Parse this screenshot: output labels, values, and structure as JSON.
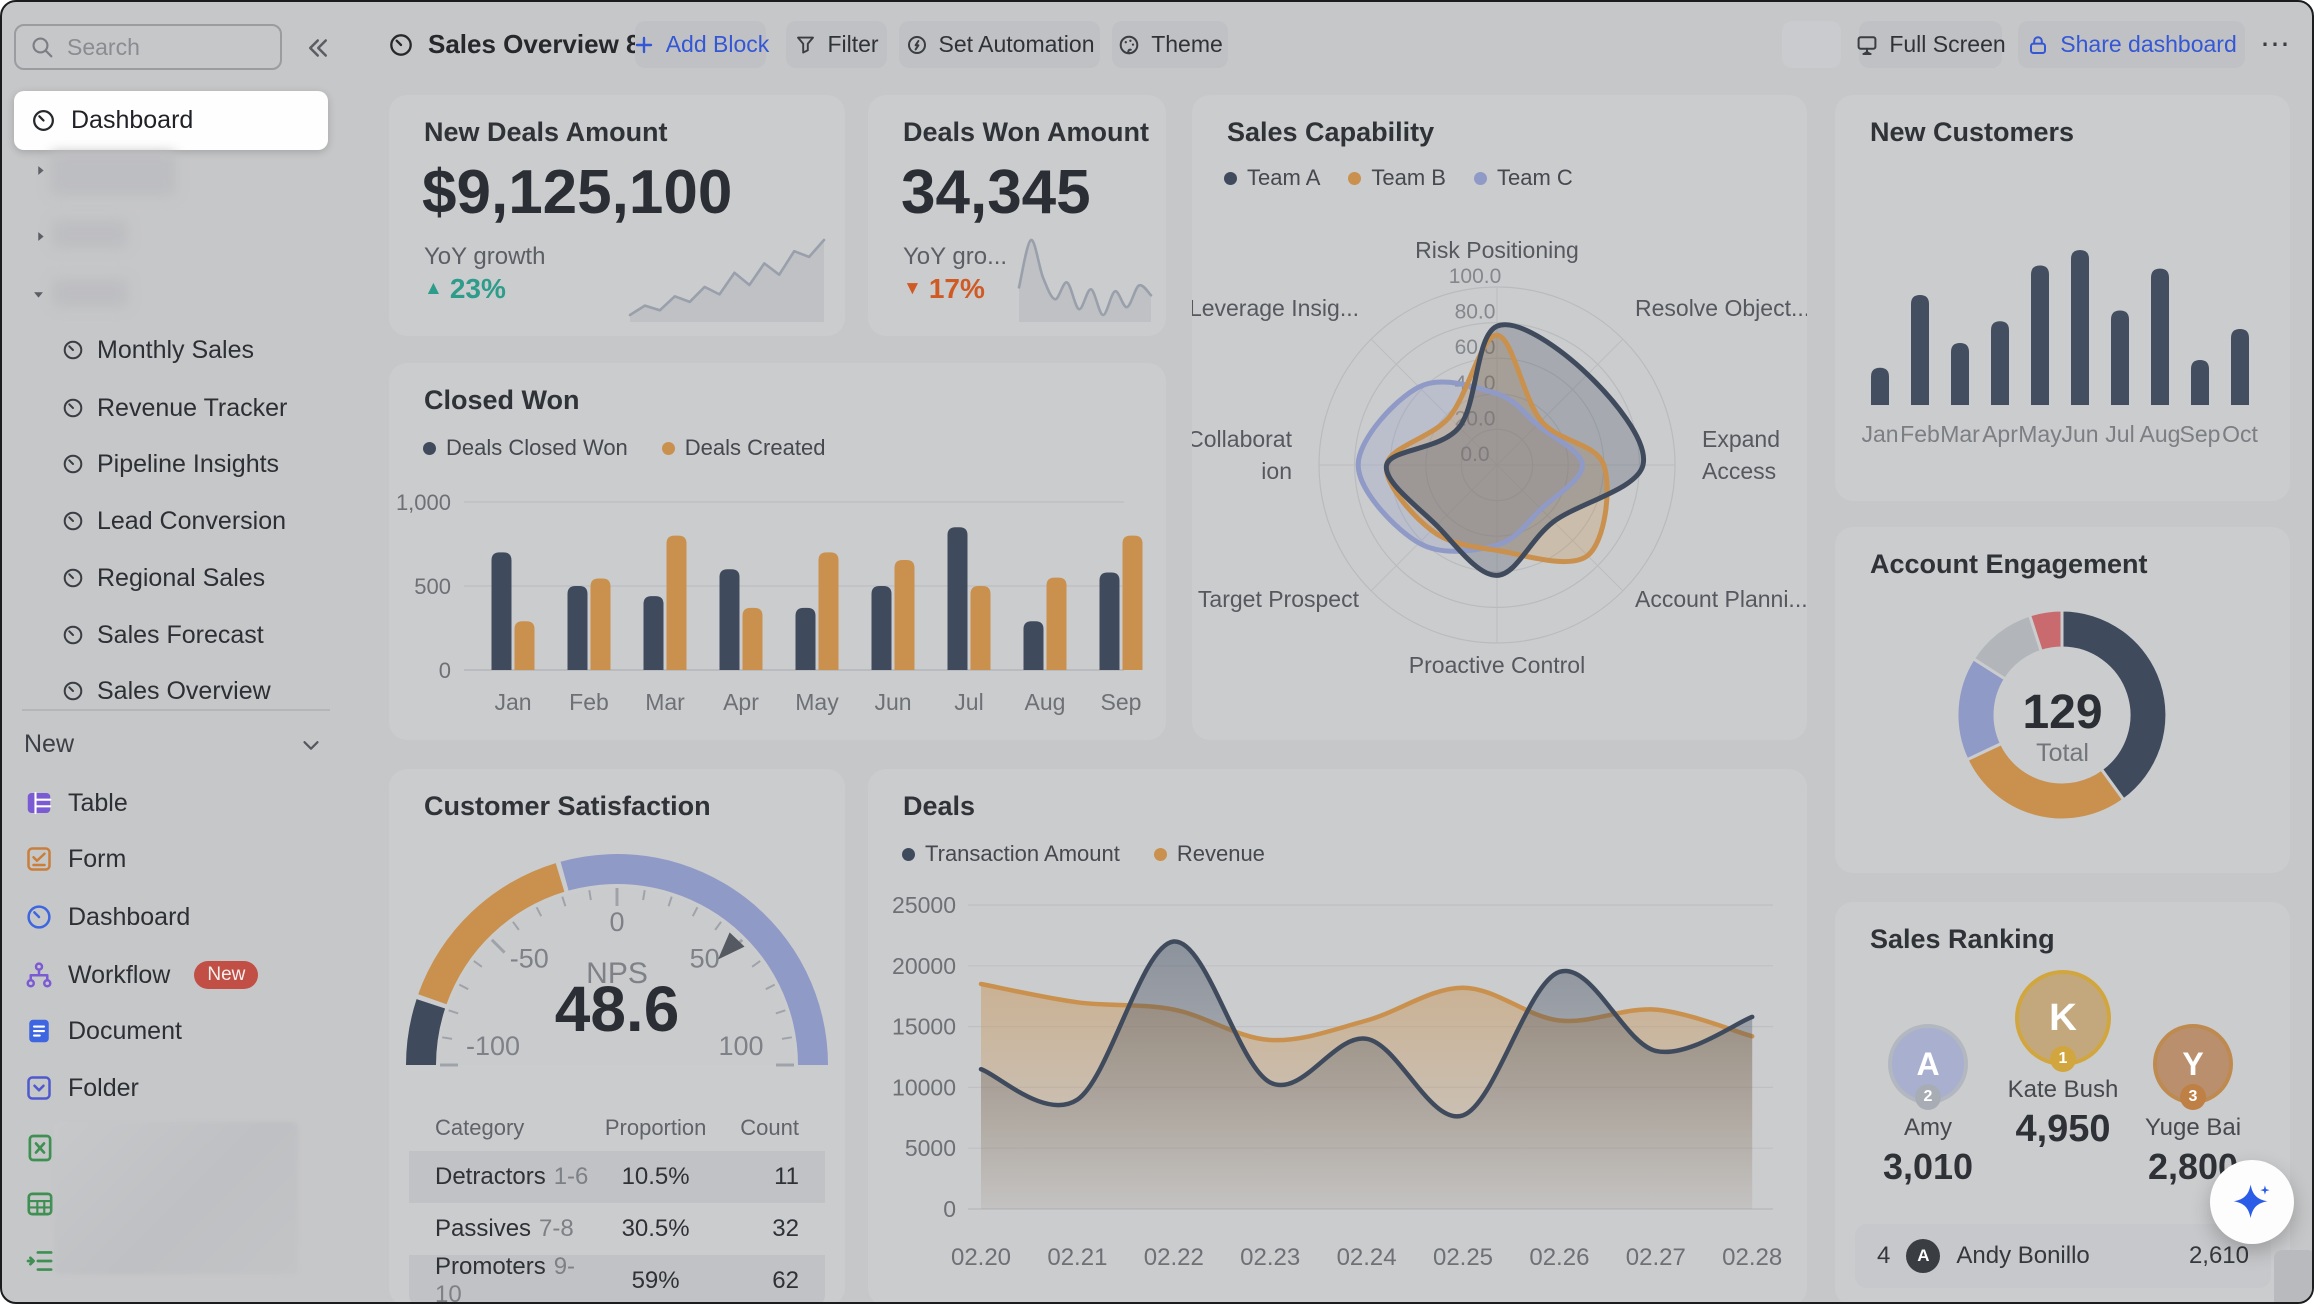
{
  "topbar": {
    "search": {
      "placeholder": "Search"
    },
    "title": "Sales Overview 8",
    "buttons": {
      "add_block": "Add Block",
      "filter": "Filter",
      "set_automation": "Set Automation",
      "theme": "Theme",
      "full_screen": "Full Screen",
      "share_dashboard": "Share dashboard",
      "more": "⋯"
    }
  },
  "sidebar": {
    "active": "Dashboard",
    "dashboards": [
      "Monthly Sales",
      "Revenue Tracker",
      "Pipeline Insights",
      "Lead Conversion",
      "Regional Sales",
      "Sales Forecast",
      "Sales Overview"
    ],
    "section_label": "New",
    "tools": [
      {
        "label": "Table",
        "icon": "table",
        "color": "#7b5bd4"
      },
      {
        "label": "Form",
        "icon": "form",
        "color": "#c97e3b"
      },
      {
        "label": "Dashboard",
        "icon": "clock",
        "color": "#3d66e0"
      },
      {
        "label": "Workflow",
        "icon": "workflow",
        "color": "#7b5bd4",
        "badge": "New"
      },
      {
        "label": "Document",
        "icon": "document",
        "color": "#3d66e0"
      },
      {
        "label": "Folder",
        "icon": "folder",
        "color": "#4f58cf"
      }
    ]
  },
  "cards": {
    "new_deals": {
      "title": "New Deals Amount",
      "value": "$9,125,100",
      "sub": "YoY growth",
      "delta": "23%"
    },
    "deals_won": {
      "title": "Deals Won Amount",
      "value": "34,345",
      "sub": "YoY gro...",
      "delta": "17%"
    },
    "closed_won": {
      "title": "Closed Won"
    },
    "capability": {
      "title": "Sales Capability"
    },
    "new_customers": {
      "title": "New Customers"
    },
    "engagement": {
      "title": "Account Engagement",
      "total_value": "129",
      "total_label": "Total"
    },
    "satisfaction": {
      "title": "Customer Satisfaction",
      "metric_label": "NPS",
      "metric_value": "48.6"
    },
    "deals": {
      "title": "Deals"
    },
    "ranking": {
      "title": "Sales Ranking"
    }
  },
  "colors": {
    "navy": "#3f4b5d",
    "orange": "#c9914d",
    "periwinkle": "#8f9ac7",
    "teal_up": "#2e9c8b",
    "red_down": "#cf5a24",
    "accent_blue": "#3457d6",
    "badge_red": "#c14f46"
  },
  "chart_data": [
    {
      "id": "new_deals_spark",
      "type": "line",
      "values": [
        2,
        3,
        2.5,
        4,
        3.4,
        5,
        4.2,
        6.5,
        5.2,
        7.5,
        6.3,
        8.8,
        8.2,
        10
      ]
    },
    {
      "id": "deals_won_spark",
      "type": "line",
      "values": [
        5,
        9.8,
        6,
        3.8,
        5.5,
        2.8,
        4.8,
        2.2,
        4.6,
        3,
        5.2,
        4.2
      ]
    },
    {
      "id": "closed_won",
      "type": "bar",
      "categories": [
        "Jan",
        "Feb",
        "Mar",
        "Apr",
        "May",
        "Jun",
        "Jul",
        "Aug",
        "Sep"
      ],
      "series": [
        {
          "name": "Deals Closed Won",
          "color": "#3f4b5d",
          "values": [
            700,
            500,
            440,
            600,
            370,
            500,
            850,
            290,
            580
          ]
        },
        {
          "name": "Deals Created",
          "color": "#c9914d",
          "values": [
            290,
            545,
            800,
            370,
            700,
            655,
            500,
            550,
            800
          ]
        }
      ],
      "ylim": [
        0,
        1000
      ],
      "yticks": [
        "0",
        "500",
        "1,000"
      ]
    },
    {
      "id": "capability",
      "type": "radar",
      "axes": [
        "Risk Positioning",
        "Resolve Object...",
        "Expand Access",
        "Account Planni...",
        "Proactive Control",
        "Target Prospect",
        "Collaboration",
        "Leverage Insig..."
      ],
      "axis_display": [
        "Risk Positioning",
        "Resolve Object...",
        "Expand\nAccess",
        "Account Planni...",
        "Proactive Control",
        "Target Prospect",
        "Collaborat\nion",
        "Leverage Insig..."
      ],
      "rmax": 100,
      "rticks": [
        "100.0",
        "80.0",
        "60.0",
        "40.0",
        "20.0",
        "0.0"
      ],
      "series": [
        {
          "name": "Team A",
          "color": "#3f4b5d",
          "values": [
            78,
            72,
            82,
            45,
            62,
            48,
            62,
            30
          ]
        },
        {
          "name": "Team B",
          "color": "#c9914d",
          "values": [
            73,
            35,
            60,
            72,
            48,
            52,
            62,
            38
          ]
        },
        {
          "name": "Team C",
          "color": "#8f9ac7",
          "values": [
            40,
            32,
            48,
            35,
            45,
            62,
            78,
            62
          ]
        }
      ]
    },
    {
      "id": "new_customers",
      "type": "bar",
      "color": "#434f60",
      "categories": [
        "Jan",
        "Feb",
        "Mar",
        "Apr",
        "May",
        "Jun",
        "Jul",
        "Aug",
        "Sep",
        "Oct"
      ],
      "values": [
        24,
        71,
        40,
        54,
        90,
        100,
        61,
        88,
        29,
        49
      ]
    },
    {
      "id": "engagement",
      "type": "pie",
      "segments": [
        {
          "value": 40,
          "color": "#3f4b5d"
        },
        {
          "value": 28,
          "color": "#c9914d"
        },
        {
          "value": 16,
          "color": "#8f9ac7"
        },
        {
          "value": 11,
          "color": "#b2b5b9"
        },
        {
          "value": 5,
          "color": "#c86a6e"
        }
      ],
      "center_value": "129",
      "center_label": "Total"
    },
    {
      "id": "satisfaction_gauge",
      "type": "gauge",
      "min": -100,
      "max": 100,
      "value": 48.6,
      "ticks": [
        -100,
        -50,
        0,
        50,
        100
      ],
      "zones": [
        {
          "from": -100,
          "to": -79,
          "color": "#3f4b5d"
        },
        {
          "from": -79,
          "to": -18,
          "color": "#c9914d"
        },
        {
          "from": -18,
          "to": 100,
          "color": "#8f9ac7"
        }
      ]
    },
    {
      "id": "nps_table",
      "type": "table",
      "columns": [
        "Category",
        "Proportion",
        "Count"
      ],
      "rows": [
        {
          "category": "Detractors",
          "range": "1-6",
          "proportion": "10.5%",
          "count": "11"
        },
        {
          "category": "Passives",
          "range": "7-8",
          "proportion": "30.5%",
          "count": "32"
        },
        {
          "category": "Promoters",
          "range": "9-10",
          "proportion": "59%",
          "count": "62"
        }
      ]
    },
    {
      "id": "deals_trend",
      "type": "area",
      "x": [
        "02.20",
        "02.21",
        "02.22",
        "02.23",
        "02.24",
        "02.25",
        "02.26",
        "02.27",
        "02.28"
      ],
      "series": [
        {
          "name": "Transaction Amount",
          "color": "#3f4b5d",
          "values": [
            11500,
            9000,
            22000,
            10400,
            14000,
            7700,
            19500,
            13000,
            15800
          ]
        },
        {
          "name": "Revenue",
          "color": "#c9914d",
          "values": [
            18500,
            17000,
            16400,
            13900,
            15500,
            18200,
            15500,
            16400,
            14200
          ]
        }
      ],
      "ylim": [
        0,
        25000
      ],
      "yticks": [
        "0",
        "5000",
        "10000",
        "15000",
        "20000",
        "25000"
      ]
    },
    {
      "id": "ranking",
      "type": "ranking",
      "podium": [
        {
          "rank": "2",
          "name": "Amy",
          "value": "3,010",
          "ring": "#b3b7bf",
          "badge": "#a8adb5",
          "avatar_bg": "#a9b0cf"
        },
        {
          "rank": "1",
          "name": "Kate Bush",
          "value": "4,950",
          "ring": "#d2a63f",
          "badge": "#d2a63f",
          "avatar_bg": "#c3a87e"
        },
        {
          "rank": "3",
          "name": "Yuge Bai",
          "value": "2,800",
          "ring": "#bf8a50",
          "badge": "#bf8045",
          "avatar_bg": "#b98f6e"
        }
      ],
      "list": [
        {
          "rank": "4",
          "name": "Andy Bonillo",
          "value": "2,610"
        }
      ]
    }
  ]
}
